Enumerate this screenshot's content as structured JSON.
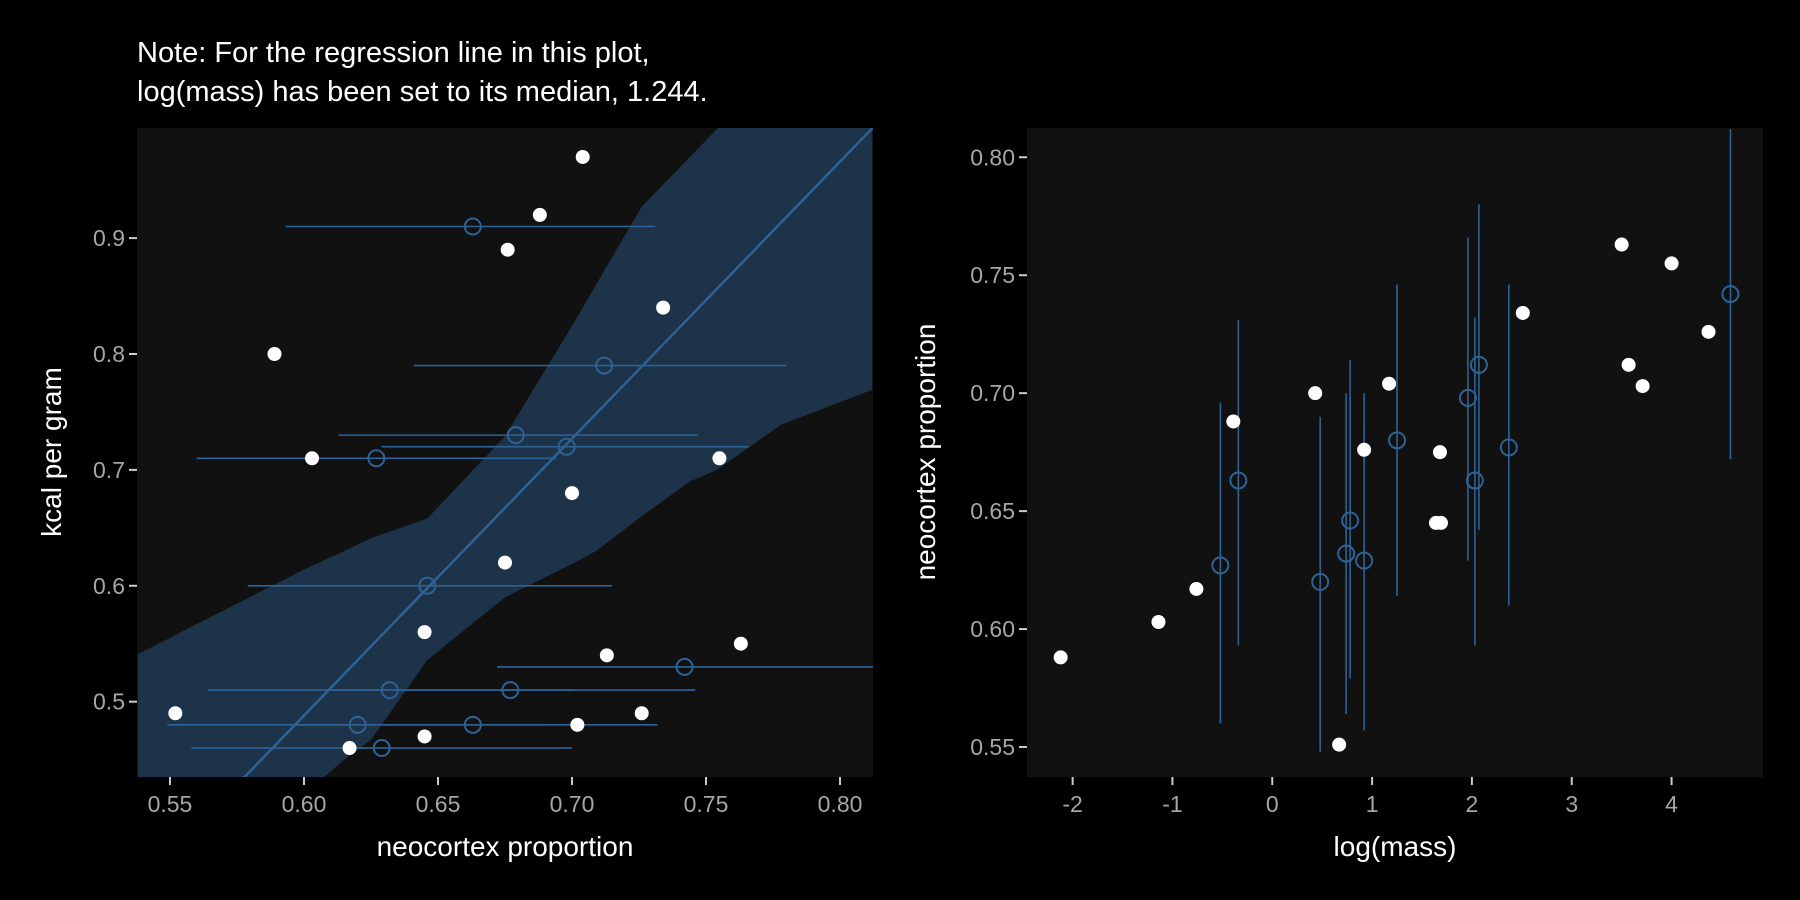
{
  "chart_data": [
    {
      "type": "scatter",
      "title_lines": [
        "Note: For the regression line in this plot,",
        "log(mass) has been set to its median, 1.244."
      ],
      "xlabel": "neocortex proportion",
      "ylabel": "kcal per gram",
      "xlim": [
        0.5377,
        0.8123
      ],
      "ylim": [
        0.435,
        0.995
      ],
      "xticks": [
        0.55,
        0.6,
        0.65,
        0.7,
        0.75,
        0.8
      ],
      "xtick_labels": [
        "0.55",
        "0.60",
        "0.65",
        "0.70",
        "0.75",
        "0.80"
      ],
      "yticks": [
        0.5,
        0.6,
        0.7,
        0.8,
        0.9
      ],
      "ytick_labels": [
        "0.5",
        "0.6",
        "0.7",
        "0.8",
        "0.9"
      ],
      "grid": false,
      "observed": {
        "x": [
          0.704,
          0.688,
          0.676,
          0.734,
          0.589,
          0.603,
          0.755,
          0.7,
          0.675,
          0.645,
          0.713,
          0.763,
          0.552,
          0.726,
          0.702,
          0.645,
          0.617
        ],
        "y": [
          0.97,
          0.92,
          0.89,
          0.84,
          0.8,
          0.71,
          0.71,
          0.68,
          0.62,
          0.56,
          0.54,
          0.55,
          0.49,
          0.49,
          0.48,
          0.47,
          0.46
        ]
      },
      "imputed": {
        "x": [
          0.663,
          0.712,
          0.679,
          0.698,
          0.627,
          0.646,
          0.632,
          0.677,
          0.62,
          0.663,
          0.742,
          0.629
        ],
        "y": [
          0.91,
          0.79,
          0.73,
          0.72,
          0.71,
          0.6,
          0.51,
          0.51,
          0.48,
          0.48,
          0.53,
          0.46
        ],
        "xlo": [
          0.593,
          0.641,
          0.613,
          0.629,
          0.56,
          0.579,
          0.564,
          0.61,
          0.549,
          0.595,
          0.672,
          0.558
        ],
        "xhi": [
          0.731,
          0.78,
          0.747,
          0.766,
          0.694,
          0.715,
          0.7,
          0.746,
          0.69,
          0.732,
          0.813,
          0.7
        ]
      },
      "regression": {
        "slope": 2.39,
        "intercept": -0.946
      },
      "band": {
        "x": [
          0.538,
          0.572,
          0.6,
          0.615,
          0.625,
          0.646,
          0.675,
          0.701,
          0.709,
          0.726,
          0.744,
          0.754,
          0.778,
          0.812
        ],
        "lower": [
          0.3,
          0.36,
          0.42,
          0.45,
          0.467,
          0.536,
          0.59,
          0.62,
          0.63,
          0.66,
          0.69,
          0.7,
          0.739,
          0.769
        ],
        "upper": [
          0.541,
          0.581,
          0.614,
          0.63,
          0.641,
          0.658,
          0.729,
          0.828,
          0.86,
          0.927,
          0.97,
          0.994,
          1.05,
          1.13
        ]
      }
    },
    {
      "type": "scatter",
      "xlabel": "log(mass)",
      "ylabel": "neocortex proportion",
      "xlim": [
        -2.457,
        4.916
      ],
      "ylim": [
        0.5373,
        0.8124
      ],
      "xticks": [
        -2,
        -1,
        0,
        1,
        2,
        3,
        4
      ],
      "xtick_labels": [
        "-2",
        "-1",
        "0",
        "1",
        "2",
        "3",
        "4"
      ],
      "yticks": [
        0.55,
        0.6,
        0.65,
        0.7,
        0.75,
        0.8
      ],
      "ytick_labels": [
        "0.55",
        "0.60",
        "0.65",
        "0.70",
        "0.75",
        "0.80"
      ],
      "grid": false,
      "observed": {
        "x": [
          -2.12,
          -1.14,
          -0.76,
          -0.39,
          0.43,
          0.92,
          1.17,
          1.68,
          1.64,
          1.69,
          2.51,
          3.5,
          4.0,
          4.37,
          3.57,
          3.71,
          0.67
        ],
        "y": [
          0.588,
          0.603,
          0.617,
          0.688,
          0.7,
          0.676,
          0.704,
          0.675,
          0.645,
          0.645,
          0.734,
          0.763,
          0.755,
          0.726,
          0.712,
          0.703,
          0.551
        ]
      },
      "imputed": {
        "x": [
          -0.52,
          -0.34,
          0.48,
          0.74,
          0.78,
          0.92,
          1.25,
          1.96,
          2.07,
          2.03,
          2.37,
          4.59
        ],
        "y": [
          0.627,
          0.663,
          0.62,
          0.632,
          0.646,
          0.629,
          0.68,
          0.698,
          0.712,
          0.663,
          0.677,
          0.742
        ],
        "ylo": [
          0.56,
          0.593,
          0.548,
          0.564,
          0.579,
          0.557,
          0.614,
          0.629,
          0.642,
          0.593,
          0.61,
          0.672
        ],
        "yhi": [
          0.696,
          0.731,
          0.69,
          0.7,
          0.714,
          0.7,
          0.746,
          0.766,
          0.78,
          0.732,
          0.746,
          0.812
        ]
      }
    }
  ],
  "colors": {
    "background": "#000000",
    "panel": "#111111",
    "accent_blue": "#2f6294",
    "band": "#1c3349",
    "observed_point": "#ffffff",
    "tick_label": "#a6a6a6"
  }
}
